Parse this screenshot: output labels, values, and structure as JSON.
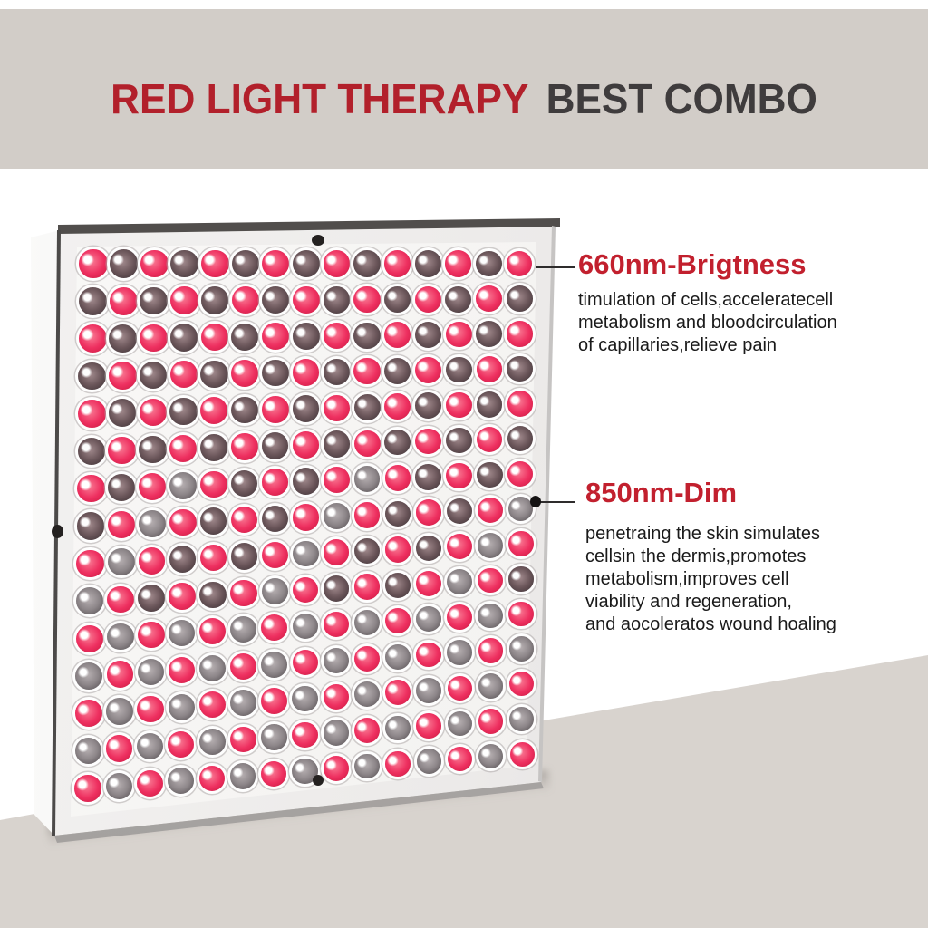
{
  "title": {
    "red_text": "RED LIGHT THERAPY",
    "dark_text": "BEST COMBO"
  },
  "callouts": [
    {
      "id": "660",
      "heading": "660nm-Brigtness",
      "body_lines": [
        "timulation of cells,acceleratecell",
        "metabolism and bloodcirculation",
        "of capillaries,relieve pain"
      ],
      "attach_led": {
        "row": 0,
        "col": 14
      },
      "has_dot": false
    },
    {
      "id": "850",
      "heading": "850nm-Dim",
      "body_lines": [
        "penetraing the skin simulates",
        "cellsin the dermis,promotes",
        "metabolism,improves cell",
        "viability and regeneration,",
        "and aocoleratos wound hoaling"
      ],
      "attach_led": {
        "row": 7,
        "col": 14
      },
      "has_dot": true
    }
  ],
  "panel": {
    "description": "square LED therapy lamp panel, front face grid of LEDs",
    "led_grid": {
      "rows": 15,
      "cols": 15,
      "legend": {
        "R": "red-660nm-led",
        "D": "dark-850nm-led"
      },
      "pattern": [
        "RDRDRDRDRDRDRDR",
        "DRDRDRDRDRDRDRD",
        "RDRDRDRDRDRDRDR",
        "DRDRDRDRDRDRDRD",
        "RDRDRDRDRDRDRDR",
        "DRDRDRDRDRDRDRD",
        "RDRDRDRDRDRDRDR",
        "DRDRDRDRDRDRDRD",
        "RDRDRDRDRDRDRDR",
        "DRDRDRDRDRDRDRD",
        "RDRDRDRDRDRDRDR",
        "DRDRDRDRDRDRDRD",
        "RDRDRDRDRDRDRDR",
        "DRDRDRDRDRDRDRD",
        "RDRDRDRDRDRDRDR"
      ]
    },
    "screw_count": 3
  },
  "colors": {
    "header_band": "#d2cdc8",
    "wall": "#ffffff",
    "floor": "#d8d3ce",
    "title_red": "#b2202b",
    "title_dark": "#3f3c3d",
    "heading_red": "#c2202e",
    "body_text": "#1a1a1a",
    "led_red": "#ee3060",
    "led_red_deep": "#c8173f",
    "led_dark_brown": "#6b565a",
    "led_dark_gray": "#8d8689",
    "connector": "#2e2c2c"
  }
}
